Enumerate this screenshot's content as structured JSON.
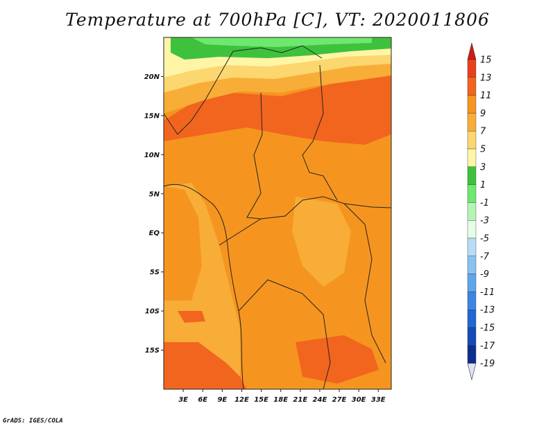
{
  "title": "Temperature at 700hPa [C], VT: 2020011806",
  "credit": "GrADS: IGES/COLA",
  "map": {
    "type": "filled-contour-map",
    "variable": "Temperature at 700hPa",
    "units": "C",
    "valid_time": "2020011806",
    "lat_range": [
      -20,
      25
    ],
    "lon_range": [
      0,
      35
    ],
    "lat_ticks": [
      {
        "value": 20,
        "label": "20N"
      },
      {
        "value": 15,
        "label": "15N"
      },
      {
        "value": 10,
        "label": "10N"
      },
      {
        "value": 5,
        "label": "5N"
      },
      {
        "value": 0,
        "label": "EQ"
      },
      {
        "value": -5,
        "label": "5S"
      },
      {
        "value": -10,
        "label": "10S"
      },
      {
        "value": -15,
        "label": "15S"
      }
    ],
    "lon_ticks": [
      {
        "value": 3,
        "label": "3E"
      },
      {
        "value": 6,
        "label": "6E"
      },
      {
        "value": 9,
        "label": "9E"
      },
      {
        "value": 12,
        "label": "12E"
      },
      {
        "value": 15,
        "label": "15E"
      },
      {
        "value": 18,
        "label": "18E"
      },
      {
        "value": 21,
        "label": "21E"
      },
      {
        "value": 24,
        "label": "24E"
      },
      {
        "value": 27,
        "label": "27E"
      },
      {
        "value": 30,
        "label": "30E"
      },
      {
        "value": 33,
        "label": "33E"
      }
    ]
  },
  "colorbar": {
    "levels": [
      15,
      13,
      11,
      9,
      7,
      5,
      3,
      1,
      -1,
      -3,
      -5,
      -7,
      -9,
      -11,
      -13,
      -15,
      -17,
      -19
    ],
    "bins": [
      {
        "lo": 13,
        "hi": 15,
        "color": "#e8401e"
      },
      {
        "lo": 11,
        "hi": 13,
        "color": "#f2651f"
      },
      {
        "lo": 9,
        "hi": 11,
        "color": "#f5951f"
      },
      {
        "lo": 7,
        "hi": 9,
        "color": "#f7ad37"
      },
      {
        "lo": 5,
        "hi": 7,
        "color": "#fcd66f"
      },
      {
        "lo": 3,
        "hi": 5,
        "color": "#fff5a6"
      },
      {
        "lo": 1,
        "hi": 3,
        "color": "#3ec23e"
      },
      {
        "lo": -1,
        "hi": 1,
        "color": "#6ee86e"
      },
      {
        "lo": -3,
        "hi": -1,
        "color": "#b4f5b4"
      },
      {
        "lo": -5,
        "hi": -3,
        "color": "#e6fce6"
      },
      {
        "lo": -7,
        "hi": -5,
        "color": "#b7dcf7"
      },
      {
        "lo": -9,
        "hi": -7,
        "color": "#8ac2f0"
      },
      {
        "lo": -11,
        "hi": -9,
        "color": "#5fa5ea"
      },
      {
        "lo": -13,
        "hi": -11,
        "color": "#3c86e1"
      },
      {
        "lo": -15,
        "hi": -13,
        "color": "#2268d3"
      },
      {
        "lo": -17,
        "hi": -15,
        "color": "#144cb7"
      },
      {
        "lo": -19,
        "hi": -17,
        "color": "#0d2e8d"
      }
    ],
    "over_color": "#d01b16",
    "under_color": "#dce4f6"
  }
}
